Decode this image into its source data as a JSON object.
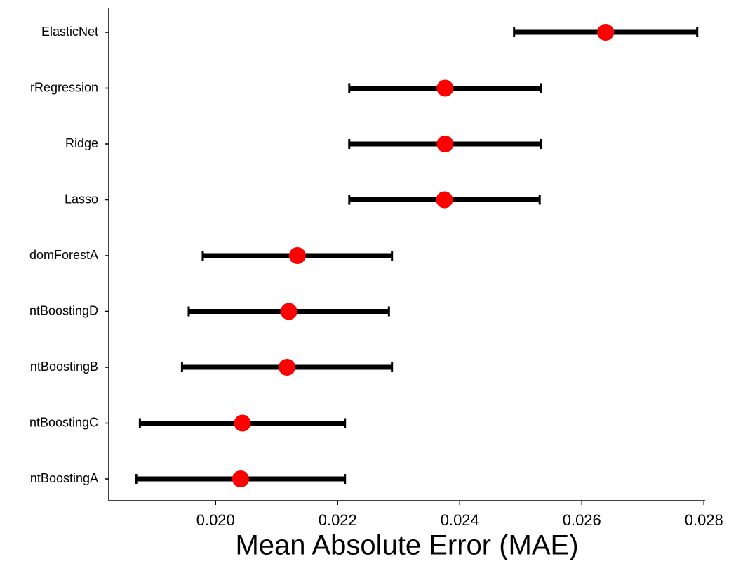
{
  "chart_data": {
    "type": "errorbar",
    "x_label": "Mean Absolute Error (MAE)",
    "categories": [
      "ElasticNet",
      "rRegression",
      "Ridge",
      "Lasso",
      "domForestA",
      "ntBoostingD",
      "ntBoostingB",
      "ntBoostingC",
      "ntBoostingA"
    ],
    "values": [
      0.02639,
      0.02376,
      0.02376,
      0.02375,
      0.02134,
      0.0212,
      0.02117,
      0.02044,
      0.02041
    ],
    "errors": [
      0.0015,
      0.00157,
      0.00157,
      0.00156,
      0.00155,
      0.00164,
      0.00172,
      0.00168,
      0.00171
    ],
    "color": "#ff0000",
    "error_color": "#000000",
    "xlim": [
      0.01825,
      0.02802
    ],
    "xticks": [
      {
        "value": 0.02,
        "label": "0.020"
      },
      {
        "value": 0.022,
        "label": "0.022"
      },
      {
        "value": 0.024,
        "label": "0.024"
      },
      {
        "value": 0.026,
        "label": "0.026"
      },
      {
        "value": 0.028,
        "label": "0.028"
      }
    ]
  }
}
